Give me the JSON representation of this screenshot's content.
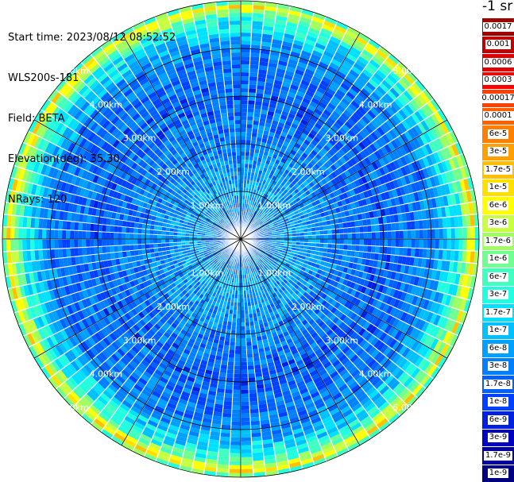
{
  "header": {
    "start_time": "Start time: 2023/08/12 08:52:52",
    "instrument": "WLS200s-181",
    "field": "Field: BETA",
    "elevation": "Elevation(deg): 35.30",
    "nrays": "NRays: 120"
  },
  "colorbar": {
    "title": "-1 sr",
    "levels": [
      {
        "label": "0.0017",
        "color": "#a00000"
      },
      {
        "label": "0.001",
        "color": "#c00000"
      },
      {
        "label": "0.0006",
        "color": "#e00000"
      },
      {
        "label": "0.0003",
        "color": "#ff0000"
      },
      {
        "label": "0.00017",
        "color": "#ff4000"
      },
      {
        "label": "0.0001",
        "color": "#ff6000"
      },
      {
        "label": "6e-5",
        "color": "#ff8000"
      },
      {
        "label": "3e-5",
        "color": "#ffa000"
      },
      {
        "label": "1.7e-5",
        "color": "#ffc000"
      },
      {
        "label": "1e-5",
        "color": "#ffe000"
      },
      {
        "label": "6e-6",
        "color": "#ffff00"
      },
      {
        "label": "3e-6",
        "color": "#c8ff40"
      },
      {
        "label": "1.7e-6",
        "color": "#a0ff60"
      },
      {
        "label": "1e-6",
        "color": "#70ff90"
      },
      {
        "label": "6e-7",
        "color": "#40ffc0"
      },
      {
        "label": "3e-7",
        "color": "#20ffe0"
      },
      {
        "label": "1.7e-7",
        "color": "#00e0ff"
      },
      {
        "label": "1e-7",
        "color": "#00c0ff"
      },
      {
        "label": "6e-8",
        "color": "#00a0ff"
      },
      {
        "label": "3e-8",
        "color": "#0080ff"
      },
      {
        "label": "1.7e-8",
        "color": "#0060ff"
      },
      {
        "label": "1e-8",
        "color": "#0040ff"
      },
      {
        "label": "6e-9",
        "color": "#0020e0"
      },
      {
        "label": "3e-9",
        "color": "#0000c0"
      },
      {
        "label": "1.7e-9",
        "color": "#0000a0"
      },
      {
        "label": "1e-9",
        "color": "#000080"
      }
    ]
  },
  "chart_data": {
    "type": "heatmap",
    "projection": "polar (PPI scan)",
    "field": "BETA",
    "n_rays": 120,
    "max_range_km": 5.0,
    "range_rings": [
      {
        "range_km": 1.0,
        "label": "1.00km"
      },
      {
        "range_km": 2.0,
        "label": "2.00km"
      },
      {
        "range_km": 3.0,
        "label": "3.00km"
      },
      {
        "range_km": 4.0,
        "label": "4.00km"
      },
      {
        "range_km": 5.0,
        "label": "5.00km"
      }
    ],
    "spokes_deg": [
      0,
      30,
      60,
      90,
      120,
      150,
      180,
      210,
      240,
      270,
      300,
      330
    ],
    "radial_profile": [
      {
        "range_km": 0.0,
        "value": "1e-8"
      },
      {
        "range_km": 1.0,
        "value": "6e-8"
      },
      {
        "range_km": 2.0,
        "value": "3e-8"
      },
      {
        "range_km": 3.0,
        "value": "1.7e-8"
      },
      {
        "range_km": 4.0,
        "value": "3e-8"
      },
      {
        "range_km": 4.6,
        "value": "3e-7"
      },
      {
        "range_km": 4.9,
        "value": "1e-5"
      },
      {
        "range_km": 5.0,
        "value": "1e-7"
      }
    ]
  }
}
